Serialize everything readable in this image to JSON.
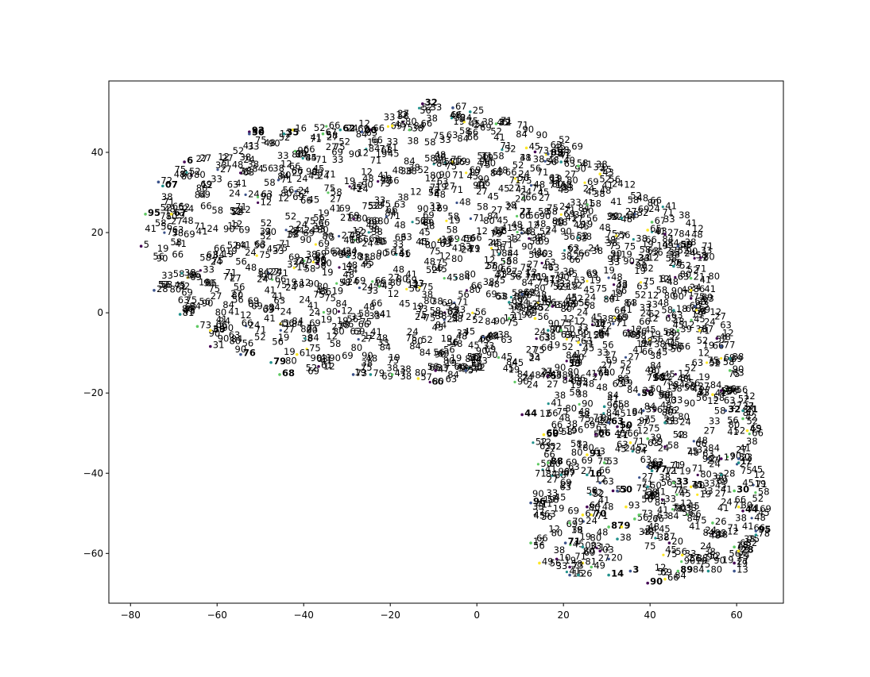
{
  "chart_data": {
    "type": "scatter",
    "title": "",
    "xlabel": "",
    "ylabel": "",
    "xlim": [
      -85,
      70.8
    ],
    "ylim": [
      -72.4,
      57.8
    ],
    "grid": false,
    "legend": "none",
    "x_ticks": [
      -80,
      -60,
      -40,
      -20,
      0,
      20,
      40,
      60
    ],
    "y_ticks": [
      40,
      20,
      0,
      -20,
      -40,
      -60
    ],
    "x_tick_labels": [
      "−80",
      "−60",
      "−40",
      "−20",
      "0",
      "20",
      "40",
      "60"
    ],
    "y_tick_labels": [
      "40",
      "20",
      "0",
      "−20",
      "−40",
      "−60"
    ],
    "colormap": [
      "#440154",
      "#3b528b",
      "#21918c",
      "#5ec962",
      "#fde725"
    ],
    "label_color": "#000000",
    "labeled_points": [
      {
        "x": -12,
        "y": 52.5,
        "label": "32",
        "bold": true
      },
      {
        "x": -5,
        "y": 51.5,
        "label": "67"
      },
      {
        "x": -1,
        "y": 50.5,
        "label": "25"
      },
      {
        "x": 5,
        "y": 47.5,
        "label": "32",
        "bold": true
      },
      {
        "x": -19,
        "y": 47,
        "label": "45"
      },
      {
        "x": -24,
        "y": 46,
        "label": "66"
      },
      {
        "x": -26,
        "y": 45.5,
        "label": "00",
        "bold": true
      },
      {
        "x": -31,
        "y": 46,
        "label": "62",
        "bold": true
      },
      {
        "x": -35,
        "y": 45,
        "label": "67"
      },
      {
        "x": -42,
        "y": 46,
        "label": "16"
      },
      {
        "x": -52,
        "y": 45.5,
        "label": "92",
        "bold": true
      },
      {
        "x": -52,
        "y": 45,
        "label": "50",
        "bold": true
      },
      {
        "x": -44,
        "y": 45,
        "label": "35",
        "bold": true
      },
      {
        "x": -15,
        "y": 46,
        "label": "38"
      },
      {
        "x": 12,
        "y": 41.5,
        "label": "45"
      },
      {
        "x": 14,
        "y": 40.5,
        "label": "73"
      },
      {
        "x": 17,
        "y": 40,
        "label": "85",
        "bold": true
      },
      {
        "x": 20,
        "y": 38,
        "label": "40"
      },
      {
        "x": 24,
        "y": 37,
        "label": "41"
      },
      {
        "x": 29,
        "y": 35,
        "label": "43"
      },
      {
        "x": -67,
        "y": 38,
        "label": "6",
        "bold": true
      },
      {
        "x": -73,
        "y": 33,
        "label": "72"
      },
      {
        "x": -72,
        "y": 32,
        "label": "07",
        "bold": true
      },
      {
        "x": -76,
        "y": 25,
        "label": "95",
        "bold": true
      },
      {
        "x": -70,
        "y": 25,
        "label": "67",
        "bold": true
      },
      {
        "x": -77,
        "y": 17,
        "label": "5"
      },
      {
        "x": -74,
        "y": 6,
        "label": "28"
      },
      {
        "x": -68,
        "y": 0,
        "label": "81"
      },
      {
        "x": -64,
        "y": -3,
        "label": "73"
      },
      {
        "x": -61,
        "y": -4,
        "label": "39",
        "bold": true
      },
      {
        "x": -61,
        "y": -8,
        "label": "31"
      },
      {
        "x": -54,
        "y": -10,
        "label": "76",
        "bold": true
      },
      {
        "x": -47,
        "y": -12,
        "label": "79",
        "bold": true
      },
      {
        "x": -45,
        "y": -15,
        "label": "68",
        "bold": true
      },
      {
        "x": -41,
        "y": -10,
        "label": "61"
      },
      {
        "x": -36,
        "y": -13,
        "label": "61"
      },
      {
        "x": -28,
        "y": -15,
        "label": "73"
      },
      {
        "x": -24,
        "y": -15,
        "label": "79"
      },
      {
        "x": -19,
        "y": -15,
        "label": "47"
      },
      {
        "x": -13,
        "y": -16,
        "label": "57"
      },
      {
        "x": -9,
        "y": -14,
        "label": "47"
      },
      {
        "x": -2,
        "y": -14,
        "label": "57"
      },
      {
        "x": 8,
        "y": 3,
        "label": "69"
      },
      {
        "x": 8,
        "y": -1,
        "label": "41"
      },
      {
        "x": 14,
        "y": -1,
        "label": "56"
      },
      {
        "x": 18,
        "y": 2,
        "label": "34"
      },
      {
        "x": 11,
        "y": 5,
        "label": "68"
      },
      {
        "x": 17,
        "y": -4,
        "label": "77"
      },
      {
        "x": 20,
        "y": -4,
        "label": "50"
      },
      {
        "x": 24,
        "y": -7,
        "label": "63"
      },
      {
        "x": 28,
        "y": -15,
        "label": "64"
      },
      {
        "x": 37,
        "y": 25,
        "label": "32"
      },
      {
        "x": 34,
        "y": 24,
        "label": "44"
      },
      {
        "x": 41,
        "y": 23,
        "label": "67"
      },
      {
        "x": 40,
        "y": 21,
        "label": "65"
      },
      {
        "x": 44,
        "y": 20,
        "label": "27"
      },
      {
        "x": 47,
        "y": 17,
        "label": "59",
        "bold": true
      },
      {
        "x": 46,
        "y": 12,
        "label": "5"
      },
      {
        "x": 50,
        "y": 9,
        "label": "21"
      },
      {
        "x": 50,
        "y": 6,
        "label": "86"
      },
      {
        "x": 50,
        "y": 4,
        "label": "75"
      },
      {
        "x": 51,
        "y": 2,
        "label": "73"
      },
      {
        "x": 46,
        "y": 1,
        "label": "18"
      },
      {
        "x": 47,
        "y": -4,
        "label": "39"
      },
      {
        "x": 52,
        "y": -4,
        "label": "67"
      },
      {
        "x": 56,
        "y": -6,
        "label": "48"
      },
      {
        "x": 57,
        "y": -8,
        "label": "77"
      },
      {
        "x": 59,
        "y": -11,
        "label": "38"
      },
      {
        "x": 59,
        "y": -14,
        "label": "90"
      },
      {
        "x": 55,
        "y": -20,
        "label": "41"
      },
      {
        "x": 57,
        "y": -19,
        "label": "36",
        "bold": true
      },
      {
        "x": 58,
        "y": -24,
        "label": "32",
        "bold": true
      },
      {
        "x": 62,
        "y": -24,
        "label": "21",
        "bold": true
      },
      {
        "x": 62,
        "y": -26,
        "label": "42"
      },
      {
        "x": 63,
        "y": -29,
        "label": "45"
      },
      {
        "x": 40,
        "y": -19,
        "label": "50"
      },
      {
        "x": 38,
        "y": -20,
        "label": "56",
        "bold": true
      },
      {
        "x": 44,
        "y": -27,
        "label": "53"
      },
      {
        "x": 40,
        "y": -31,
        "label": "39"
      },
      {
        "x": 36,
        "y": -32,
        "label": "71"
      },
      {
        "x": 44,
        "y": -33,
        "label": "58"
      },
      {
        "x": 40,
        "y": -38,
        "label": "77",
        "bold": true
      },
      {
        "x": 41,
        "y": -39,
        "label": "77",
        "bold": true
      },
      {
        "x": 46,
        "y": -42,
        "label": "33",
        "bold": true
      },
      {
        "x": 50,
        "y": -43,
        "label": "30"
      },
      {
        "x": 57,
        "y": -36,
        "label": "17"
      },
      {
        "x": 61,
        "y": -36,
        "label": "23"
      },
      {
        "x": 61,
        "y": -37,
        "label": "12"
      },
      {
        "x": 60,
        "y": -44,
        "label": "30",
        "bold": true
      },
      {
        "x": 61,
        "y": -48,
        "label": "30"
      },
      {
        "x": 62,
        "y": -49,
        "label": "44",
        "bold": true
      },
      {
        "x": 65,
        "y": -54,
        "label": "95",
        "bold": true
      },
      {
        "x": 65,
        "y": -55,
        "label": "78"
      },
      {
        "x": 60,
        "y": -58,
        "label": "18"
      },
      {
        "x": 61,
        "y": -59,
        "label": "28",
        "bold": true
      },
      {
        "x": 60,
        "y": -62,
        "label": "27"
      },
      {
        "x": 60,
        "y": -64,
        "label": "13"
      },
      {
        "x": 54,
        "y": -64,
        "label": "80"
      },
      {
        "x": 47,
        "y": -64,
        "label": "89",
        "bold": true
      },
      {
        "x": 44,
        "y": -66,
        "label": "66"
      },
      {
        "x": 40,
        "y": -67,
        "label": "90",
        "bold": true
      },
      {
        "x": 36,
        "y": -64,
        "label": "3",
        "bold": true
      },
      {
        "x": 31,
        "y": -65,
        "label": "14",
        "bold": true
      },
      {
        "x": 27,
        "y": -63,
        "label": "49"
      },
      {
        "x": 25,
        "y": -62,
        "label": "81"
      },
      {
        "x": 22,
        "y": -63,
        "label": "73"
      },
      {
        "x": 22,
        "y": -65,
        "label": "15"
      },
      {
        "x": 24,
        "y": -65,
        "label": "26"
      },
      {
        "x": 13,
        "y": -57,
        "label": "12"
      },
      {
        "x": 15,
        "y": -62,
        "label": "49"
      },
      {
        "x": 19,
        "y": -61,
        "label": "10"
      },
      {
        "x": 21,
        "y": -57,
        "label": "71",
        "bold": true
      },
      {
        "x": 25,
        "y": -58,
        "label": "00"
      },
      {
        "x": 31,
        "y": -53,
        "label": "87",
        "bold": true
      },
      {
        "x": 34,
        "y": -53,
        "label": "9",
        "bold": true
      },
      {
        "x": 29,
        "y": -59,
        "label": "03"
      },
      {
        "x": 31,
        "y": -61,
        "label": "20"
      },
      {
        "x": 33,
        "y": -56,
        "label": "38"
      },
      {
        "x": 37,
        "y": -51,
        "label": "56"
      },
      {
        "x": 35,
        "y": -48,
        "label": "93"
      },
      {
        "x": 32,
        "y": -44,
        "label": "53"
      },
      {
        "x": 33,
        "y": -44,
        "label": "50",
        "bold": true
      },
      {
        "x": 40,
        "y": -43,
        "label": "50"
      },
      {
        "x": 38,
        "y": -50,
        "label": "73"
      },
      {
        "x": 27,
        "y": -50,
        "label": "70",
        "bold": true
      },
      {
        "x": 26,
        "y": -48,
        "label": "64"
      },
      {
        "x": 29,
        "y": -42,
        "label": "63"
      },
      {
        "x": 26,
        "y": -40,
        "label": "16",
        "bold": true
      },
      {
        "x": 30,
        "y": -37,
        "label": "53"
      },
      {
        "x": 26,
        "y": -35,
        "label": "91",
        "bold": true
      },
      {
        "x": 28,
        "y": -30,
        "label": "66",
        "bold": true
      },
      {
        "x": 31,
        "y": -27,
        "label": "63",
        "bold": true
      },
      {
        "x": 30,
        "y": -23,
        "label": "96"
      },
      {
        "x": 17,
        "y": -37,
        "label": "88",
        "bold": true
      },
      {
        "x": 16,
        "y": -30,
        "label": "60",
        "bold": true
      },
      {
        "x": 11,
        "y": -25,
        "label": "44",
        "bold": true
      },
      {
        "x": 13,
        "y": -47,
        "label": "96",
        "bold": true
      },
      {
        "x": 20,
        "y": -40,
        "label": "47"
      },
      {
        "x": 22,
        "y": -52,
        "label": "79"
      },
      {
        "x": 25,
        "y": -50,
        "label": "67"
      },
      {
        "x": 33,
        "y": -28,
        "label": "50",
        "bold": true
      },
      {
        "x": 39,
        "y": -24,
        "label": "39"
      },
      {
        "x": 57,
        "y": -40,
        "label": "28"
      },
      {
        "x": 55,
        "y": -52,
        "label": "26"
      },
      {
        "x": 48,
        "y": -60,
        "label": "33"
      },
      {
        "x": 45,
        "y": -57,
        "label": "20"
      }
    ]
  }
}
